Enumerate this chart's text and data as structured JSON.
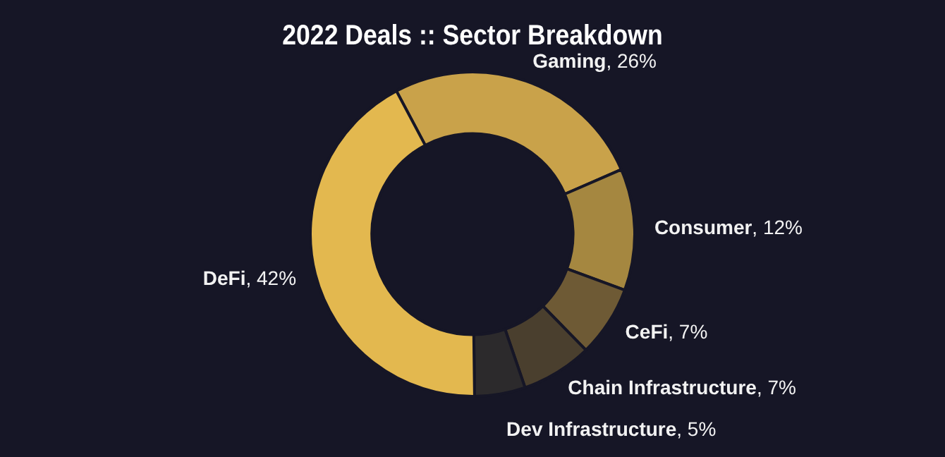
{
  "chart_data": {
    "type": "donut",
    "title": "2022 Deals :: Sector Breakdown",
    "categories": [
      "Gaming",
      "Consumer",
      "CeFi",
      "Chain Infrastructure",
      "Dev Infrastructure",
      "DeFi"
    ],
    "values": [
      26,
      12,
      7,
      7,
      5,
      42
    ],
    "value_labels": [
      ", 26%",
      ", 12%",
      ", 7%",
      ", 7%",
      ", 5%",
      ", 42%"
    ],
    "colors": [
      "#c9a24a",
      "#a58740",
      "#6e5a35",
      "#4a3f2e",
      "#2c2a2c",
      "#e3b84f"
    ],
    "legend": false
  }
}
